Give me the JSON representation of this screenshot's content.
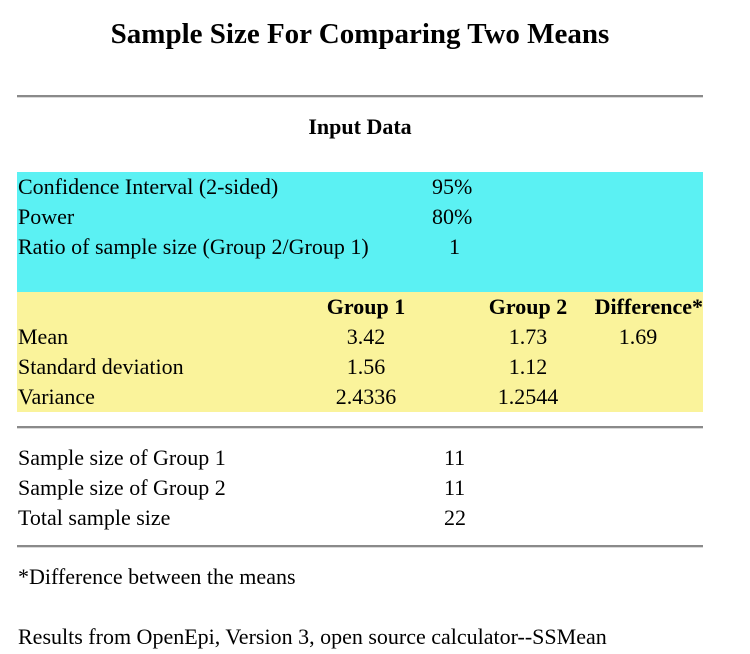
{
  "title": "Sample Size For Comparing Two Means",
  "input_section": {
    "heading": "Input Data",
    "rows": [
      {
        "label": "Confidence Interval (2-sided)",
        "value": "95%"
      },
      {
        "label": "Power",
        "value": "80%"
      },
      {
        "label": "Ratio of sample size (Group 2/Group 1)",
        "value": "1"
      }
    ],
    "colors": {
      "input_band": "#5bf1f3",
      "stats_band": "#faf39b"
    }
  },
  "stats_table": {
    "headers": [
      "Group 1",
      "Group 2",
      "Difference*"
    ],
    "rows": [
      {
        "label": "Mean",
        "group1": "3.42",
        "group2": "1.73",
        "difference": "1.69"
      },
      {
        "label": "Standard deviation",
        "group1": "1.56",
        "group2": "1.12",
        "difference": ""
      },
      {
        "label": "Variance",
        "group1": "2.4336",
        "group2": "1.2544",
        "difference": ""
      }
    ]
  },
  "results": [
    {
      "label": "Sample size of Group 1",
      "value": "11"
    },
    {
      "label": "Sample size of Group 2",
      "value": "11"
    },
    {
      "label": "Total sample size",
      "value": "22"
    }
  ],
  "footnote": "*Difference between the means",
  "credit": "Results from OpenEpi, Version 3, open source calculator--SSMean"
}
